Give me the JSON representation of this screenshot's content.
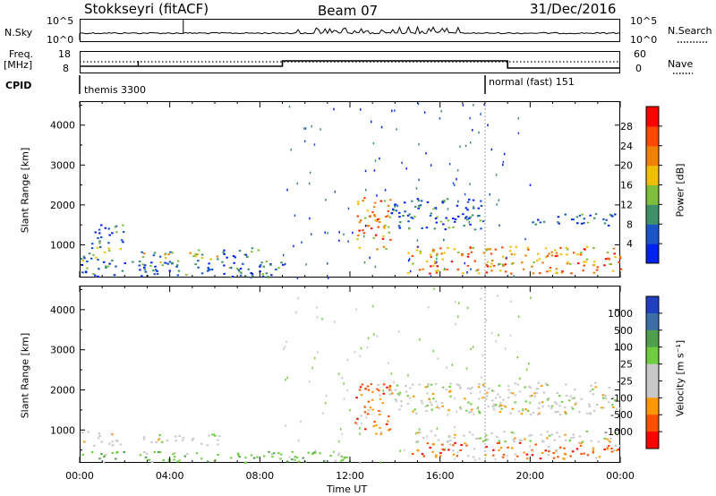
{
  "header": {
    "station": "Stokkseyri (fitACF)",
    "beam": "Beam 07",
    "date": "31/Dec/2016"
  },
  "nsky_panel": {
    "left_label": "N.Sky",
    "right_label": "N.Search",
    "left_ticks": [
      "10^5",
      "10^0"
    ],
    "right_ticks": [
      "10^5",
      "10^0"
    ]
  },
  "freq_panel": {
    "left_label_1": "Freq.",
    "left_label_2": "[MHz]",
    "right_label": "Nave",
    "left_ticks": [
      "18",
      "8"
    ],
    "right_ticks": [
      "60",
      "0"
    ]
  },
  "cpid_panel": {
    "label": "CPID",
    "modes": [
      {
        "name": "themis 3300",
        "start_hour": 0
      },
      {
        "name": "normal (fast) 151",
        "start_hour": 18
      }
    ]
  },
  "colors": {
    "power": [
      "#0022ee",
      "#1a55c8",
      "#3f8f68",
      "#7fbe3c",
      "#f0c000",
      "#f08000",
      "#ff4800",
      "#ff0000"
    ],
    "velocity": [
      "#ff0000",
      "#ff5000",
      "#ff9800",
      "#c8c8c8",
      "#c8c8c8",
      "#70cc40",
      "#4f9f4f",
      "#3c6fa8",
      "#2040c0"
    ]
  },
  "chart_data": [
    {
      "type": "heatmap",
      "title": "",
      "xlabel": "",
      "ylabel": "Slant Range [km]",
      "xlim": [
        0,
        24
      ],
      "ylim": [
        180,
        4600
      ],
      "y_ticks": [
        1000,
        2000,
        3000,
        4000
      ],
      "colorbar": {
        "label": "Power [dB]",
        "ticks": [
          "4",
          "8",
          "12",
          "16",
          "20",
          "24",
          "28"
        ],
        "range": [
          0,
          32
        ]
      },
      "regions": [
        {
          "t0": 0.0,
          "t1": 1.8,
          "r0": 620,
          "r1": 1000,
          "level": "mid"
        },
        {
          "t0": 0.0,
          "t1": 9.0,
          "r0": 200,
          "r1": 620,
          "level": "low"
        },
        {
          "t0": 0.5,
          "t1": 2.0,
          "r0": 1050,
          "r1": 1600,
          "level": "low"
        },
        {
          "t0": 2.6,
          "t1": 4.6,
          "r0": 500,
          "r1": 880,
          "level": "mid"
        },
        {
          "t0": 4.8,
          "t1": 6.3,
          "r0": 600,
          "r1": 920,
          "level": "mid"
        },
        {
          "t0": 6.3,
          "t1": 8.0,
          "r0": 650,
          "r1": 950,
          "level": "low"
        },
        {
          "t0": 12.2,
          "t1": 13.8,
          "r0": 900,
          "r1": 2200,
          "level": "high"
        },
        {
          "t0": 13.8,
          "t1": 18.0,
          "r0": 1400,
          "r1": 2200,
          "level": "low"
        },
        {
          "t0": 14.5,
          "t1": 24.0,
          "r0": 300,
          "r1": 980,
          "level": "high"
        },
        {
          "t0": 20.0,
          "t1": 24.0,
          "r0": 1500,
          "r1": 1800,
          "level": "low"
        }
      ]
    },
    {
      "type": "heatmap",
      "title": "",
      "xlabel": "Time UT",
      "ylabel": "Slant Range [km]",
      "xlim": [
        0,
        24
      ],
      "ylim": [
        180,
        4600
      ],
      "y_ticks": [
        1000,
        2000,
        3000,
        4000
      ],
      "x_tick_labels": [
        "00:00",
        "04:00",
        "08:00",
        "12:00",
        "16:00",
        "20:00",
        "00:00"
      ],
      "colorbar": {
        "label": "Velocity [m s⁻¹]",
        "ticks": [
          "1000",
          "500",
          "100",
          "25",
          "-25",
          "-100",
          "-500",
          "-1000"
        ]
      },
      "regions": [
        {
          "t0": 0.0,
          "t1": 1.8,
          "r0": 620,
          "r1": 1000,
          "level": "zero"
        },
        {
          "t0": 0.0,
          "t1": 12.0,
          "r0": 200,
          "r1": 480,
          "level": "pos"
        },
        {
          "t0": 2.6,
          "t1": 4.6,
          "r0": 620,
          "r1": 900,
          "level": "zero"
        },
        {
          "t0": 4.8,
          "t1": 6.3,
          "r0": 620,
          "r1": 920,
          "level": "zero"
        },
        {
          "t0": 12.2,
          "t1": 13.8,
          "r0": 900,
          "r1": 2200,
          "level": "neg"
        },
        {
          "t0": 13.8,
          "t1": 24.0,
          "r0": 1400,
          "r1": 2200,
          "level": "zero"
        },
        {
          "t0": 14.5,
          "t1": 24.0,
          "r0": 300,
          "r1": 700,
          "level": "neg"
        },
        {
          "t0": 14.5,
          "t1": 24.0,
          "r0": 700,
          "r1": 1000,
          "level": "zero"
        }
      ]
    }
  ]
}
